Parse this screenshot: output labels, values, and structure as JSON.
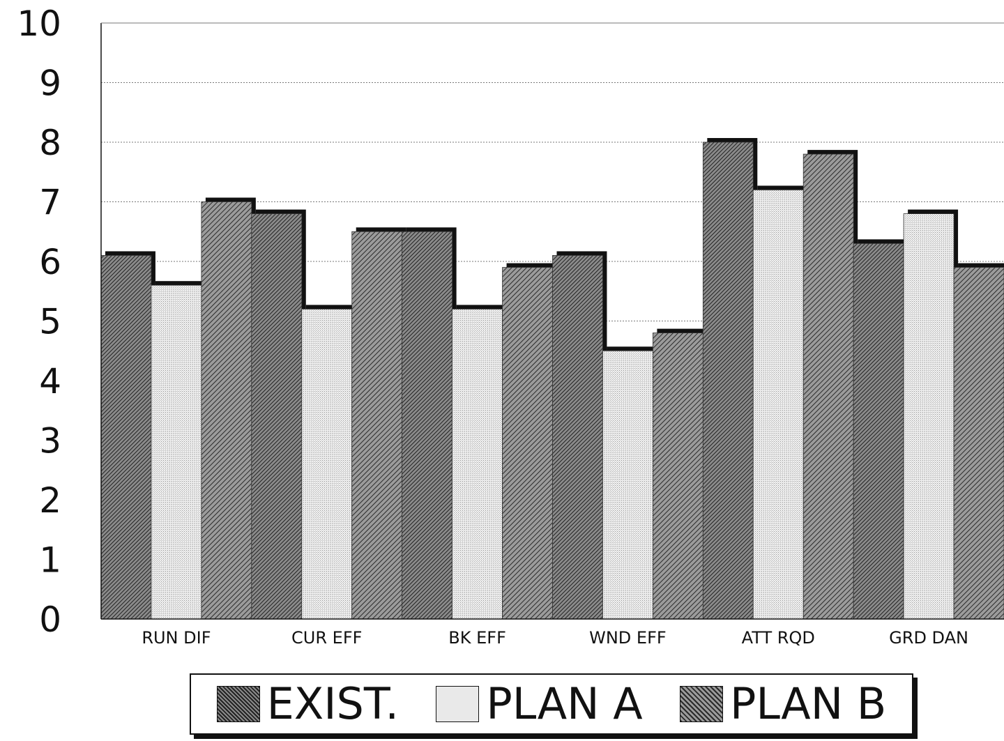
{
  "chart_data": {
    "type": "bar",
    "categories": [
      "RUN DIF",
      "CUR EFF",
      "BK EFF",
      "WND EFF",
      "ATT RQD",
      "GRD DAN"
    ],
    "series": [
      {
        "name": "EXIST.",
        "values": [
          6.1,
          6.8,
          6.5,
          6.1,
          8.0,
          6.3
        ]
      },
      {
        "name": "PLAN A",
        "values": [
          5.6,
          5.2,
          5.2,
          4.5,
          7.2,
          6.8
        ]
      },
      {
        "name": "PLAN B",
        "values": [
          7.0,
          6.5,
          5.9,
          4.8,
          7.8,
          5.9
        ]
      }
    ],
    "yticks": [
      "0",
      "1",
      "2",
      "3",
      "4",
      "5",
      "6",
      "7",
      "8",
      "9",
      "10"
    ],
    "ylim": [
      0,
      10
    ],
    "grid": true,
    "legend_position": "bottom",
    "colors": {
      "EXIST.": "#555555",
      "PLAN A": "#e4e4e4",
      "PLAN B": "#5e5e5e",
      "shadow": "#111111"
    }
  }
}
